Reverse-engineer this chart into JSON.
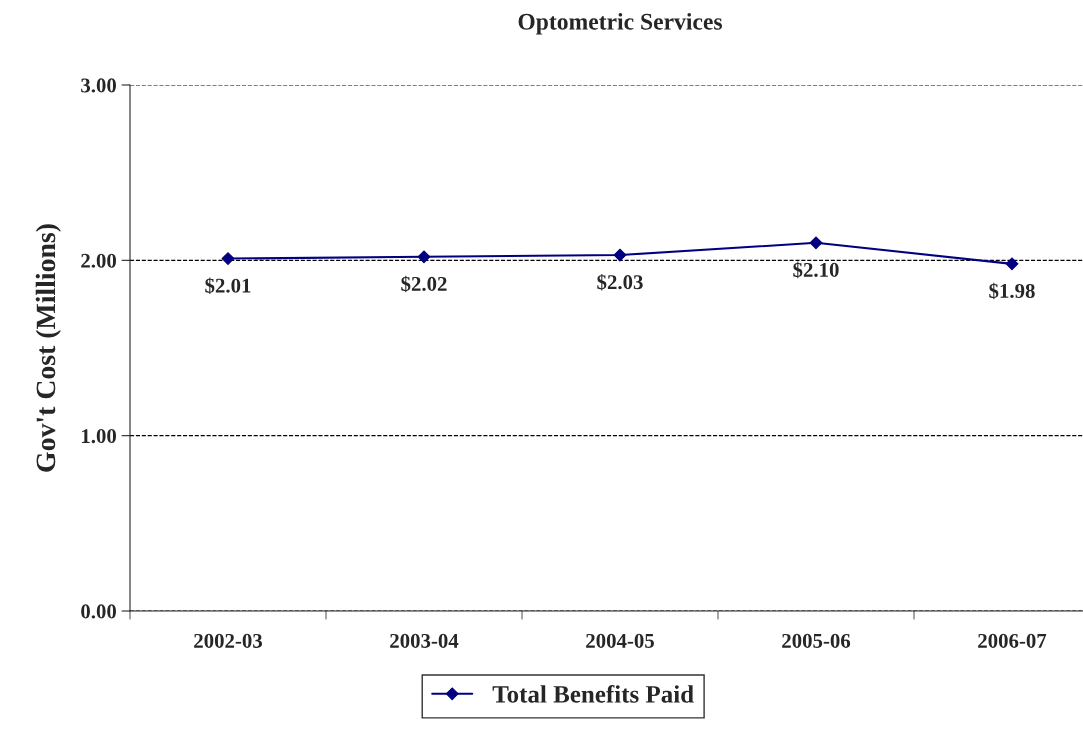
{
  "chart_data": {
    "type": "line",
    "title": "Optometric Services",
    "ylabel": "Gov't Cost (Millions)",
    "categories": [
      "2002-03",
      "2003-04",
      "2004-05",
      "2005-06",
      "2006-07"
    ],
    "series": [
      {
        "name": "Total Benefits Paid",
        "color": "#000080",
        "values": [
          2.01,
          2.02,
          2.03,
          2.1,
          1.98
        ],
        "value_labels": [
          "$2.01",
          "$2.02",
          "$2.03",
          "$2.10",
          "$1.98"
        ]
      }
    ],
    "ylim": [
      0,
      3
    ],
    "yticks": [
      {
        "value": 0,
        "label": "0.00"
      },
      {
        "value": 1,
        "label": "1.00"
      },
      {
        "value": 2,
        "label": "2.00"
      },
      {
        "value": 3,
        "label": "3.00"
      }
    ],
    "grid": "y",
    "legend": "bottom",
    "marker": "diamond",
    "line_style": "solid"
  }
}
